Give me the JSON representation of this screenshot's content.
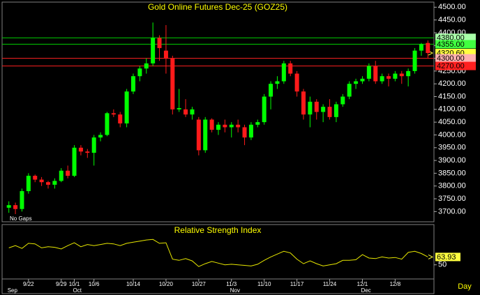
{
  "chart_data": [
    {
      "type": "candlestick",
      "title": "Gold Online Futures Dec-25 (GOZ25)",
      "note": "No Gaps",
      "x_label": "Day",
      "categories": [
        null,
        null,
        null,
        "9/22",
        null,
        null,
        null,
        null,
        "9/29",
        null,
        "10/1",
        null,
        null,
        "10/6",
        null,
        null,
        null,
        null,
        null,
        "10/14",
        null,
        null,
        null,
        null,
        "10/20",
        null,
        null,
        null,
        null,
        "10/27",
        null,
        null,
        null,
        null,
        "11/3",
        null,
        null,
        null,
        null,
        "11/10",
        null,
        null,
        null,
        null,
        "11/17",
        null,
        null,
        null,
        null,
        "11/24",
        null,
        null,
        null,
        null,
        "12/1",
        null,
        null,
        null,
        null,
        "12/8",
        null,
        null,
        null,
        null,
        null
      ],
      "months": [
        "Sep",
        null,
        null,
        null,
        null,
        null,
        null,
        null,
        null,
        null,
        "Oct",
        null,
        null,
        null,
        null,
        null,
        null,
        null,
        null,
        null,
        null,
        null,
        null,
        null,
        null,
        null,
        null,
        null,
        null,
        null,
        null,
        null,
        null,
        null,
        "Nov",
        null,
        null,
        null,
        null,
        null,
        null,
        null,
        null,
        null,
        null,
        null,
        null,
        null,
        null,
        null,
        null,
        null,
        null,
        null,
        "Dec",
        null,
        null,
        null,
        null,
        null,
        null,
        null,
        null,
        null,
        null
      ],
      "open": [
        3715,
        3725,
        3710,
        3780,
        3840,
        3825,
        3815,
        3805,
        3820,
        3860,
        3840,
        3950,
        3935,
        3930,
        3990,
        4000,
        4085,
        4080,
        4045,
        4170,
        4230,
        4260,
        4280,
        4380,
        4330,
        4300,
        4100,
        4100,
        4080,
        4060,
        3940,
        4060,
        4020,
        4040,
        4030,
        4040,
        4030,
        3990,
        4040,
        4050,
        4150,
        4200,
        4210,
        4280,
        4240,
        4170,
        4080,
        4130,
        4090,
        4110,
        4070,
        4120,
        4150,
        4200,
        4210,
        4220,
        4270,
        4210,
        4230,
        4220,
        4240,
        4230,
        4250,
        4330,
        4360
      ],
      "high": [
        3740,
        3735,
        3790,
        3850,
        3845,
        3835,
        3820,
        3830,
        3870,
        3880,
        3960,
        3960,
        3945,
        4000,
        4010,
        4090,
        4100,
        4090,
        4180,
        4240,
        4270,
        4300,
        4440,
        4390,
        4430,
        4310,
        4180,
        4140,
        4110,
        4070,
        4070,
        4065,
        4050,
        4060,
        4050,
        4060,
        4040,
        4050,
        4060,
        4160,
        4210,
        4230,
        4290,
        4290,
        4250,
        4180,
        4150,
        4140,
        4120,
        4140,
        4130,
        4160,
        4210,
        4220,
        4230,
        4280,
        4290,
        4240,
        4240,
        4250,
        4250,
        4260,
        4340,
        4360,
        4370
      ],
      "low": [
        3695,
        3690,
        3700,
        3770,
        3815,
        3800,
        3790,
        3790,
        3815,
        3830,
        3835,
        3920,
        3910,
        3880,
        3975,
        3995,
        4070,
        4030,
        4030,
        4160,
        4210,
        4240,
        4270,
        4290,
        4240,
        4080,
        4090,
        4070,
        4060,
        3920,
        3930,
        4010,
        4000,
        4010,
        3990,
        4010,
        3960,
        3980,
        4030,
        4040,
        4100,
        4180,
        4200,
        4230,
        4150,
        4060,
        4030,
        4060,
        4050,
        4060,
        4050,
        4110,
        4140,
        4180,
        4200,
        4210,
        4200,
        4200,
        4190,
        4210,
        4200,
        4190,
        4240,
        4310,
        4300
      ],
      "close": [
        3725,
        3710,
        3780,
        3840,
        3825,
        3815,
        3805,
        3820,
        3860,
        3840,
        3950,
        3935,
        3930,
        3990,
        4000,
        4085,
        4080,
        4045,
        4170,
        4230,
        4260,
        4280,
        4380,
        4340,
        4300,
        4100,
        4105,
        4080,
        4100,
        3940,
        4060,
        4020,
        4040,
        4030,
        4040,
        4030,
        3990,
        4040,
        4050,
        4150,
        4200,
        4210,
        4280,
        4240,
        4170,
        4080,
        4130,
        4090,
        4110,
        4070,
        4120,
        4150,
        4200,
        4210,
        4220,
        4270,
        4210,
        4230,
        4220,
        4240,
        4230,
        4250,
        4330,
        4355,
        4320.6
      ],
      "up_color": "#00ff00",
      "down_color": "#ff1a1a",
      "ylim": [
        3660,
        4520
      ],
      "yticks": [
        {
          "value": 3700,
          "label": "3700.00"
        },
        {
          "value": 3750,
          "label": "3750.00"
        },
        {
          "value": 3800,
          "label": "3800.00"
        },
        {
          "value": 3850,
          "label": "3850.00"
        },
        {
          "value": 3900,
          "label": "3900.00"
        },
        {
          "value": 3950,
          "label": "3950.00"
        },
        {
          "value": 4000,
          "label": "4000.00"
        },
        {
          "value": 4050,
          "label": "4050.00"
        },
        {
          "value": 4100,
          "label": "4100.00"
        },
        {
          "value": 4150,
          "label": "4150.00"
        },
        {
          "value": 4200,
          "label": "4200.00"
        },
        {
          "value": 4250,
          "label": "4250.00"
        },
        {
          "value": 4300,
          "label": "4300.00"
        },
        {
          "value": 4350,
          "label": "4350.00"
        },
        {
          "value": 4400,
          "label": "4400.00"
        },
        {
          "value": 4450,
          "label": "4450.00"
        },
        {
          "value": 4500,
          "label": "4500.00"
        }
      ],
      "levels": [
        {
          "value": 4380,
          "label": "4380.00",
          "color": "#a8ffa8",
          "line": true,
          "line_color": "#00d000"
        },
        {
          "value": 4355,
          "label": "4355.00",
          "color": "#40ff40",
          "line": true,
          "line_color": "#00d000"
        },
        {
          "value": 4320.6,
          "label": "4320.60",
          "color": "#ffff40",
          "line": false,
          "line_color": "#ffff40"
        },
        {
          "value": 4300,
          "label": "4300.00",
          "color": "#ffb0b0",
          "line": true,
          "line_color": "#ff2020"
        },
        {
          "value": 4270,
          "label": "4270.00",
          "color": "#ff2020",
          "line": true,
          "line_color": "#ff2020"
        }
      ]
    },
    {
      "type": "line",
      "title": "Relative Strength Index",
      "color": "#e8e800",
      "label_color": "#ffff40",
      "values": [
        80,
        84,
        79,
        88,
        87,
        80,
        82,
        81,
        78,
        84,
        89,
        82,
        86,
        84,
        86,
        88,
        87,
        84,
        88,
        90,
        92,
        94,
        95,
        88,
        89,
        60,
        58,
        61,
        57,
        47,
        52,
        56,
        53,
        50,
        51,
        50,
        49,
        48,
        51,
        58,
        64,
        69,
        74,
        71,
        60,
        52,
        57,
        52,
        48,
        50,
        52,
        58,
        58,
        59,
        68,
        62,
        61,
        64,
        62,
        63,
        60,
        72,
        74,
        70,
        63.93
      ],
      "ylim": [
        25,
        120
      ],
      "yticks": [
        50
      ]
    }
  ]
}
